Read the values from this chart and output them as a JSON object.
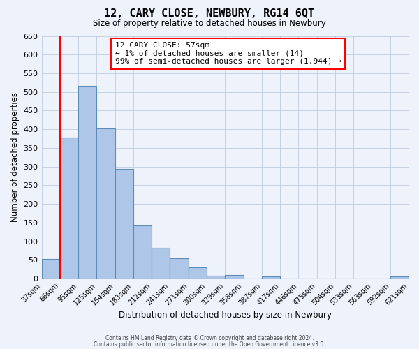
{
  "title": "12, CARY CLOSE, NEWBURY, RG14 6QT",
  "subtitle": "Size of property relative to detached houses in Newbury",
  "xlabel": "Distribution of detached houses by size in Newbury",
  "ylabel": "Number of detached properties",
  "bar_values": [
    52,
    378,
    517,
    403,
    294,
    142,
    82,
    55,
    30,
    8,
    10,
    0,
    5,
    0,
    0,
    0,
    0,
    0,
    0,
    5
  ],
  "bin_labels": [
    "37sqm",
    "66sqm",
    "95sqm",
    "125sqm",
    "154sqm",
    "183sqm",
    "212sqm",
    "241sqm",
    "271sqm",
    "300sqm",
    "329sqm",
    "358sqm",
    "387sqm",
    "417sqm",
    "446sqm",
    "475sqm",
    "504sqm",
    "533sqm",
    "563sqm",
    "592sqm",
    "621sqm"
  ],
  "bar_color": "#aec6e8",
  "bar_edge_color": "#5b8db8",
  "ylim": [
    0,
    650
  ],
  "yticks": [
    0,
    50,
    100,
    150,
    200,
    250,
    300,
    350,
    400,
    450,
    500,
    550,
    600,
    650
  ],
  "annotation_box_text": "12 CARY CLOSE: 57sqm\n← 1% of detached houses are smaller (14)\n99% of semi-detached houses are larger (1,944) →",
  "red_line_x": 1,
  "footer_line1": "Contains HM Land Registry data © Crown copyright and database right 2024.",
  "footer_line2": "Contains public sector information licensed under the Open Government Licence v3.0.",
  "bg_color": "#eef2fb"
}
